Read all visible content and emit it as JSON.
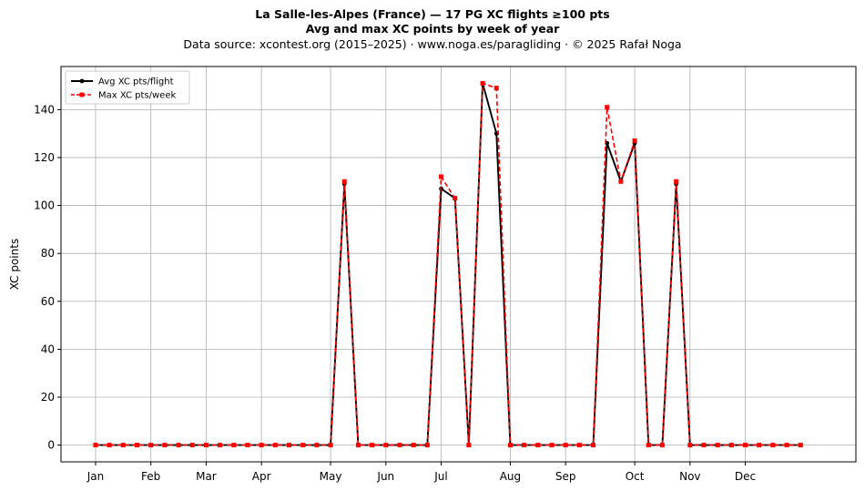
{
  "header": {
    "title": "La Salle-les-Alpes (France)  —  17 PG XC flights ≥100 pts",
    "subtitle": "Avg and max XC points by week of year",
    "source": "Data source: xcontest.org (2015–2025)  ·  www.noga.es/paragliding  ·  © 2025 Rafał Noga"
  },
  "chart_data": {
    "type": "line",
    "ylabel": "XC points",
    "xlabel": "",
    "ylim": [
      -7,
      158
    ],
    "xlim": [
      -2.5,
      55
    ],
    "yticks": [
      0,
      20,
      40,
      60,
      80,
      100,
      120,
      140
    ],
    "xticks": [
      {
        "week": 0,
        "label": "Jan"
      },
      {
        "week": 4,
        "label": "Feb"
      },
      {
        "week": 8,
        "label": "Mar"
      },
      {
        "week": 12,
        "label": "Apr"
      },
      {
        "week": 17,
        "label": "May"
      },
      {
        "week": 21,
        "label": "Jun"
      },
      {
        "week": 25,
        "label": "Jul"
      },
      {
        "week": 30,
        "label": "Aug"
      },
      {
        "week": 34,
        "label": "Sep"
      },
      {
        "week": 39,
        "label": "Oct"
      },
      {
        "week": 43,
        "label": "Nov"
      },
      {
        "week": 47,
        "label": "Dec"
      }
    ],
    "grid": true,
    "legend_position": "top-left",
    "x": [
      0,
      1,
      2,
      3,
      4,
      5,
      6,
      7,
      8,
      9,
      10,
      11,
      12,
      13,
      14,
      15,
      16,
      17,
      18,
      19,
      20,
      21,
      22,
      23,
      24,
      25,
      26,
      27,
      28,
      29,
      30,
      31,
      32,
      33,
      34,
      35,
      36,
      37,
      38,
      39,
      40,
      41,
      42,
      43,
      44,
      45,
      46,
      47,
      48,
      49,
      50,
      51
    ],
    "series": [
      {
        "name": "Avg XC pts/flight",
        "color": "#000000",
        "style": "solid",
        "marker": "circle",
        "values": [
          0,
          0,
          0,
          0,
          0,
          0,
          0,
          0,
          0,
          0,
          0,
          0,
          0,
          0,
          0,
          0,
          0,
          0,
          109,
          0,
          0,
          0,
          0,
          0,
          0,
          107,
          103,
          0,
          151,
          130,
          0,
          0,
          0,
          0,
          0,
          0,
          0,
          126,
          110,
          126,
          0,
          0,
          109,
          0,
          0,
          0,
          0,
          0,
          0,
          0,
          0,
          0
        ]
      },
      {
        "name": "Max XC pts/week",
        "color": "#ff0000",
        "style": "dashed",
        "marker": "square",
        "values": [
          0,
          0,
          0,
          0,
          0,
          0,
          0,
          0,
          0,
          0,
          0,
          0,
          0,
          0,
          0,
          0,
          0,
          0,
          110,
          0,
          0,
          0,
          0,
          0,
          0,
          112,
          103,
          0,
          151,
          149,
          0,
          0,
          0,
          0,
          0,
          0,
          0,
          141,
          110,
          127,
          0,
          0,
          110,
          0,
          0,
          0,
          0,
          0,
          0,
          0,
          0,
          0
        ]
      }
    ]
  }
}
